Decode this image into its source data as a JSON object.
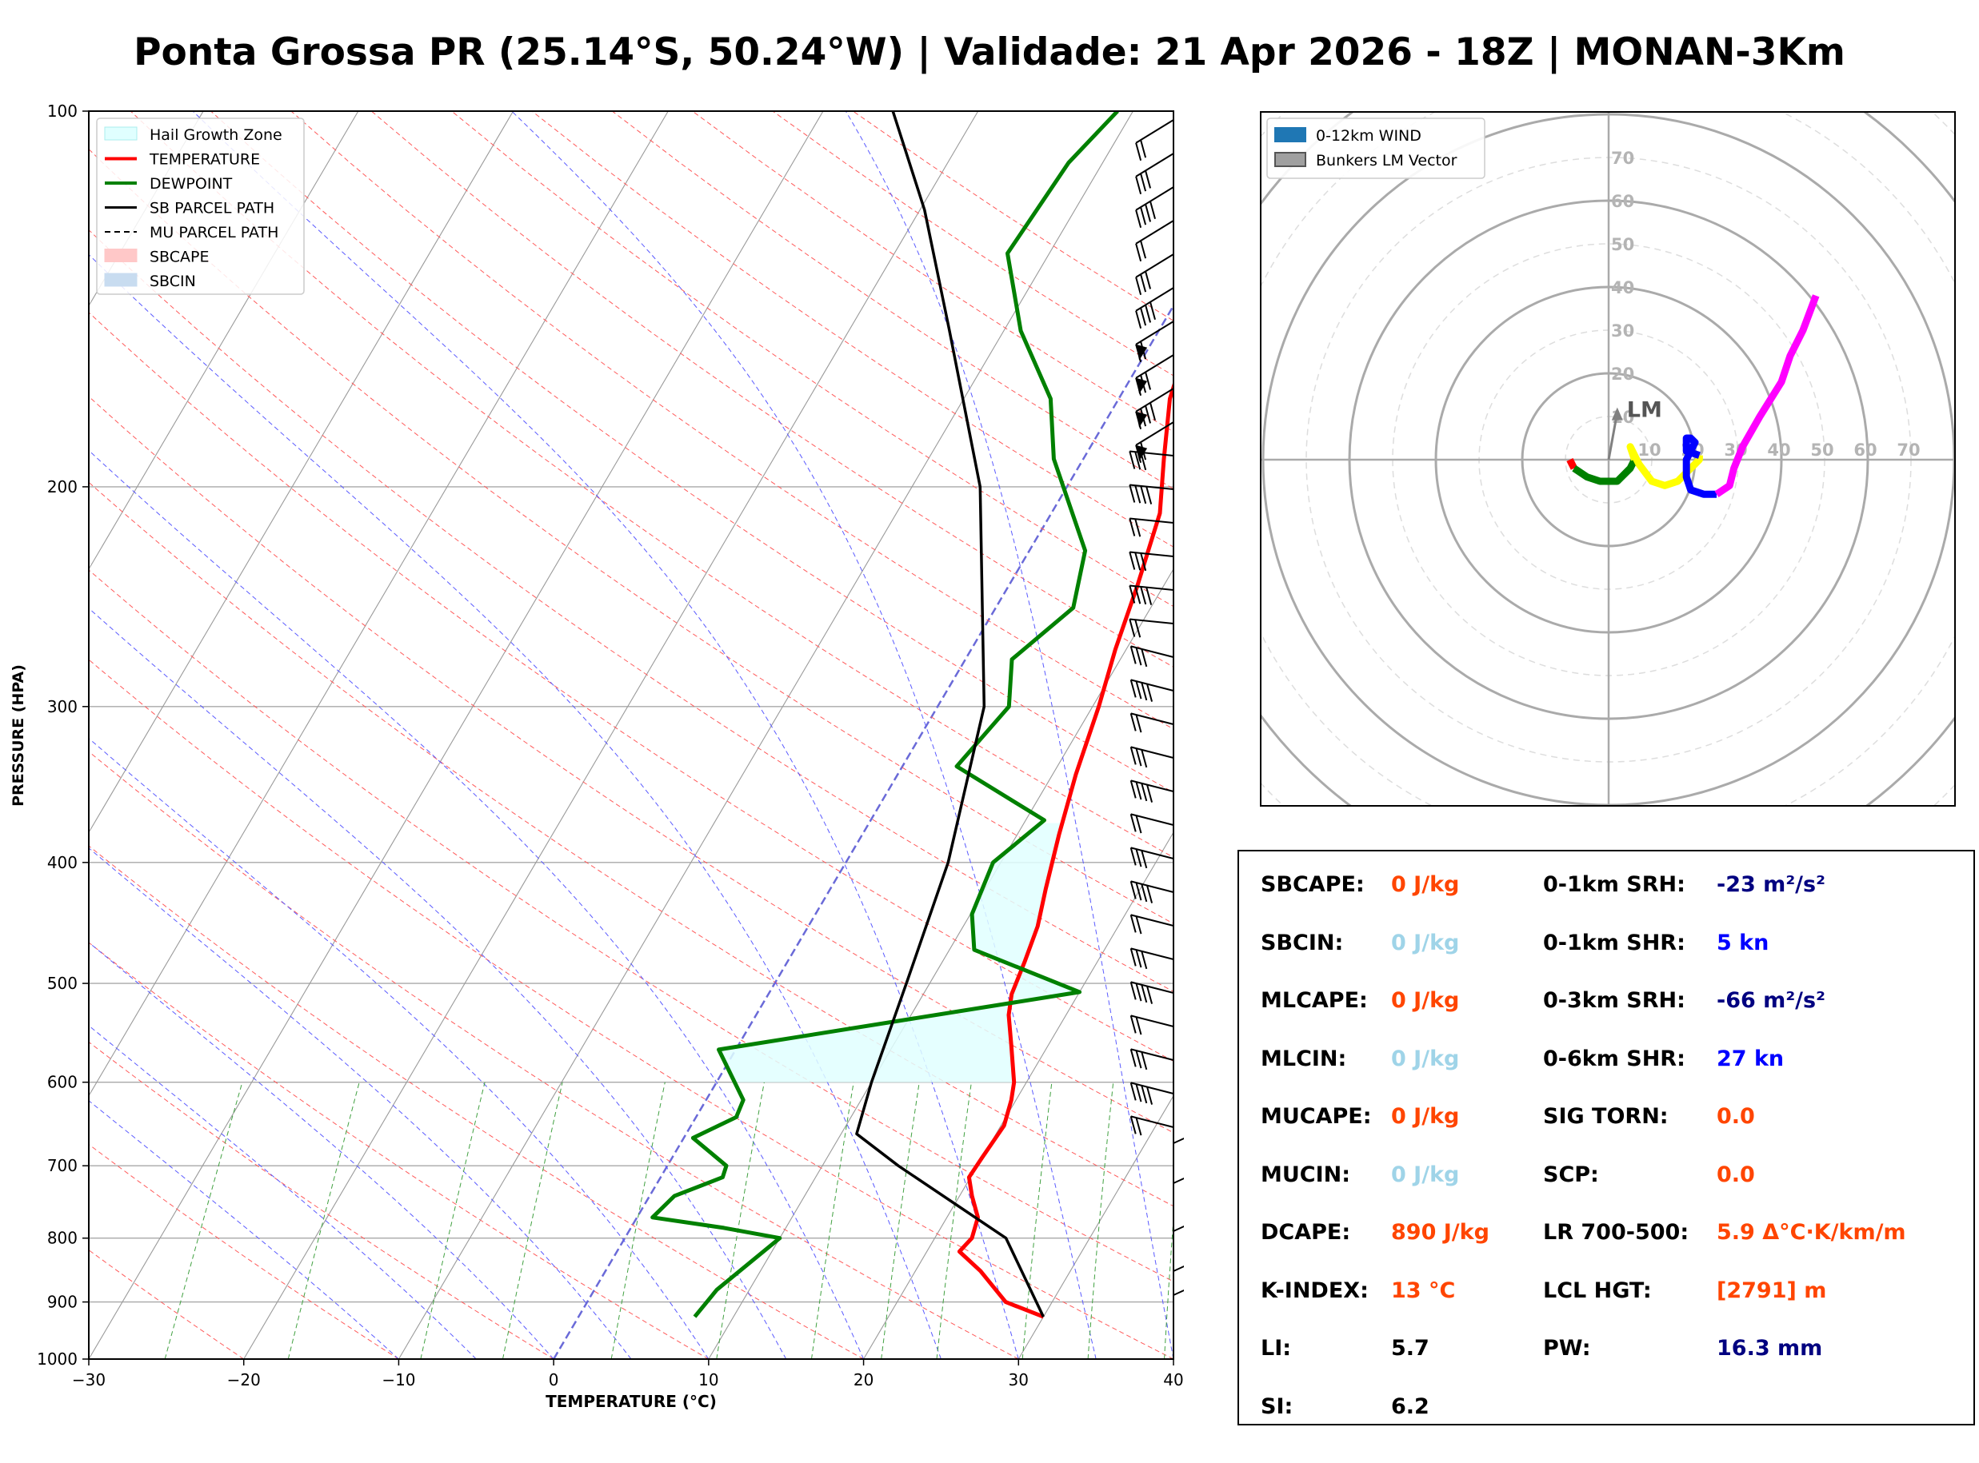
{
  "title": "Ponta Grossa PR (25.14°S, 50.24°W) | Validade: 21 Apr 2026 - 18Z | MONAN-3Km",
  "colors": {
    "temperature": "#ff0000",
    "dewpoint": "#008000",
    "sb_parcel": "#000000",
    "hail_zone": "#e0ffff",
    "isotherm": "#808080",
    "dry_adiabat": "#ff4040",
    "moist_adiabat": "#4040ff",
    "mixing_ratio": "#30a030",
    "label_orange": "#ff4500",
    "label_lightblue": "#9fd4e8",
    "label_navy": "#000080",
    "label_blue": "#0000ff"
  },
  "chart_data": [
    {
      "type": "line",
      "subtype": "skew-t",
      "title": "",
      "xlabel": "TEMPERATURE (°C)",
      "ylabel": "PRESSURE (HPA)",
      "xlim": [
        -30,
        40
      ],
      "ylim": [
        1000,
        100
      ],
      "yscale": "log",
      "x_ticks": [
        -30,
        -20,
        -10,
        0,
        10,
        20,
        30,
        40
      ],
      "x_tick_labels": [
        "−30",
        "−20",
        "−10",
        "0",
        "10",
        "20",
        "30",
        "40"
      ],
      "y_ticks": [
        1000,
        900,
        800,
        700,
        600,
        500,
        400,
        300,
        200,
        100
      ],
      "legend": {
        "position": "top-left",
        "entries": [
          "Hail Growth Zone",
          "TEMPERATURE",
          "DEWPOINT",
          "SB PARCEL PATH",
          "MU PARCEL PATH",
          "SBCAPE",
          "SBCIN"
        ]
      },
      "series": [
        {
          "name": "TEMPERATURE",
          "points": [
            [
              925,
              30.0
            ],
            [
              900,
              27.0
            ],
            [
              850,
              24.2
            ],
            [
              820,
              22.1
            ],
            [
              800,
              22.4
            ],
            [
              770,
              22.0
            ],
            [
              740,
              20.8
            ],
            [
              715,
              19.9
            ],
            [
              690,
              20.0
            ],
            [
              650,
              20.2
            ],
            [
              620,
              19.7
            ],
            [
              600,
              19.2
            ],
            [
              560,
              17.6
            ],
            [
              530,
              16.3
            ],
            [
              510,
              15.7
            ],
            [
              480,
              15.3
            ],
            [
              450,
              14.8
            ],
            [
              420,
              13.9
            ],
            [
              380,
              12.7
            ],
            [
              340,
              11.5
            ],
            [
              300,
              10.4
            ],
            [
              270,
              9.3
            ],
            [
              240,
              8.3
            ],
            [
              210,
              7.0
            ],
            [
              190,
              5.2
            ],
            [
              170,
              3.3
            ],
            [
              150,
              2.1
            ],
            [
              130,
              2.0
            ],
            [
              115,
              1.9
            ],
            [
              100,
              1.8
            ]
          ]
        },
        {
          "name": "DEWPOINT",
          "points": [
            [
              925,
              7.5
            ],
            [
              880,
              7.9
            ],
            [
              800,
              10.0
            ],
            [
              785,
              6.0
            ],
            [
              770,
              1.0
            ],
            [
              740,
              1.6
            ],
            [
              715,
              4.0
            ],
            [
              700,
              3.8
            ],
            [
              665,
              0.6
            ],
            [
              640,
              2.6
            ],
            [
              620,
              2.4
            ],
            [
              565,
              -1.1
            ],
            [
              508,
              20.0
            ],
            [
              470,
              11.6
            ],
            [
              440,
              10.1
            ],
            [
              400,
              9.5
            ],
            [
              370,
              11.2
            ],
            [
              335,
              3.5
            ],
            [
              300,
              4.6
            ],
            [
              275,
              3.0
            ],
            [
              250,
              5.0
            ],
            [
              225,
              3.6
            ],
            [
              190,
              -1.9
            ],
            [
              170,
              -4.4
            ],
            [
              150,
              -8.9
            ],
            [
              130,
              -12.7
            ],
            [
              110,
              -12.2
            ],
            [
              100,
              -11.0
            ]
          ]
        },
        {
          "name": "SB PARCEL PATH",
          "points": [
            [
              925,
              30.0
            ],
            [
              800,
              24.6
            ],
            [
              700,
              14.9
            ],
            [
              660,
              11.0
            ],
            [
              600,
              10.0
            ],
            [
              500,
              8.5
            ],
            [
              400,
              6.6
            ],
            [
              300,
              3.0
            ],
            [
              200,
              -5.6
            ],
            [
              150,
              -13.5
            ],
            [
              120,
              -19.7
            ],
            [
              100,
              -25.5
            ]
          ]
        }
      ],
      "hail_growth_zone": {
        "bottom_hpa": 600,
        "top_hpa": 370,
        "note_text": "Hail Growth Zone"
      },
      "wind_barbs_units": "kn"
    },
    {
      "type": "scatter",
      "subtype": "hodograph",
      "radial_labels": [
        "10",
        "20",
        "30",
        "40",
        "50",
        "60",
        "70"
      ],
      "rings": [
        10,
        20,
        30,
        40,
        50,
        60,
        70
      ],
      "legend": {
        "position": "top-left",
        "entries": [
          "0-12km WIND",
          "Bunkers LM Vector"
        ]
      },
      "bunkers_lm": {
        "label": "LM",
        "u": 2,
        "v": 11
      },
      "series": [
        {
          "color": "#ff0000",
          "points": [
            [
              -9,
              0
            ],
            [
              -8,
              -2
            ]
          ]
        },
        {
          "color": "#008000",
          "points": [
            [
              -8,
              -2
            ],
            [
              -5,
              -4
            ],
            [
              -2,
              -5
            ],
            [
              2,
              -5
            ],
            [
              4,
              -3
            ],
            [
              5,
              -2
            ],
            [
              6,
              0
            ]
          ]
        },
        {
          "color": "#ffff00",
          "points": [
            [
              6,
              0
            ],
            [
              5,
              3
            ],
            [
              7,
              -1
            ],
            [
              10,
              -5
            ],
            [
              13,
              -6
            ],
            [
              16,
              -5
            ],
            [
              18,
              -3
            ],
            [
              20,
              -1
            ],
            [
              21,
              0
            ],
            [
              21,
              1
            ]
          ]
        },
        {
          "color": "#0000ff",
          "points": [
            [
              21,
              1
            ],
            [
              18,
              2
            ],
            [
              18,
              5
            ],
            [
              19,
              5
            ],
            [
              20,
              4
            ],
            [
              18,
              0
            ],
            [
              18,
              -4
            ],
            [
              19,
              -7
            ],
            [
              22,
              -8
            ],
            [
              25,
              -8
            ]
          ]
        },
        {
          "color": "#ff00ff",
          "points": [
            [
              25,
              -8
            ],
            [
              28,
              -6
            ],
            [
              29,
              -2
            ],
            [
              31,
              3
            ],
            [
              35,
              10
            ],
            [
              40,
              18
            ],
            [
              42,
              24
            ],
            [
              45,
              30
            ],
            [
              48,
              38
            ]
          ]
        }
      ]
    }
  ],
  "stats": {
    "left": [
      {
        "label": "SBCAPE:",
        "value": "0 J/kg",
        "color": "#ff4500"
      },
      {
        "label": "SBCIN:",
        "value": "0 J/kg",
        "color": "#9fd4e8"
      },
      {
        "label": "MLCAPE:",
        "value": "0 J/kg",
        "color": "#ff4500"
      },
      {
        "label": "MLCIN:",
        "value": "0 J/kg",
        "color": "#9fd4e8"
      },
      {
        "label": "MUCAPE:",
        "value": "0 J/kg",
        "color": "#ff4500"
      },
      {
        "label": "MUCIN:",
        "value": "0 J/kg",
        "color": "#9fd4e8"
      },
      {
        "label": "DCAPE:",
        "value": "890 J/kg",
        "color": "#ff4500"
      },
      {
        "label": "K-INDEX:",
        "value": "13 °C",
        "color": "#ff4500"
      },
      {
        "label": "LI:",
        "value": "5.7",
        "color": "#000000"
      },
      {
        "label": "SI:",
        "value": "6.2",
        "color": "#000000"
      }
    ],
    "right": [
      {
        "label": "0-1km SRH:",
        "value": "-23 m²/s²",
        "color": "#000080"
      },
      {
        "label": "0-1km SHR:",
        "value": "5 kn",
        "color": "#0000ff"
      },
      {
        "label": "0-3km SRH:",
        "value": "-66 m²/s²",
        "color": "#000080"
      },
      {
        "label": "0-6km SHR:",
        "value": "27 kn",
        "color": "#0000ff"
      },
      {
        "label": "SIG TORN:",
        "value": "0.0",
        "color": "#ff4500"
      },
      {
        "label": "SCP:",
        "value": "0.0",
        "color": "#ff4500"
      },
      {
        "label": "LR 700-500:",
        "value": "5.9 Δ°C·K/km/m",
        "color": "#ff4500"
      },
      {
        "label": "LCL HGT:",
        "value": "[2791] m",
        "color": "#ff4500"
      },
      {
        "label": "PW:",
        "value": "16.3 mm",
        "color": "#000080"
      }
    ]
  }
}
